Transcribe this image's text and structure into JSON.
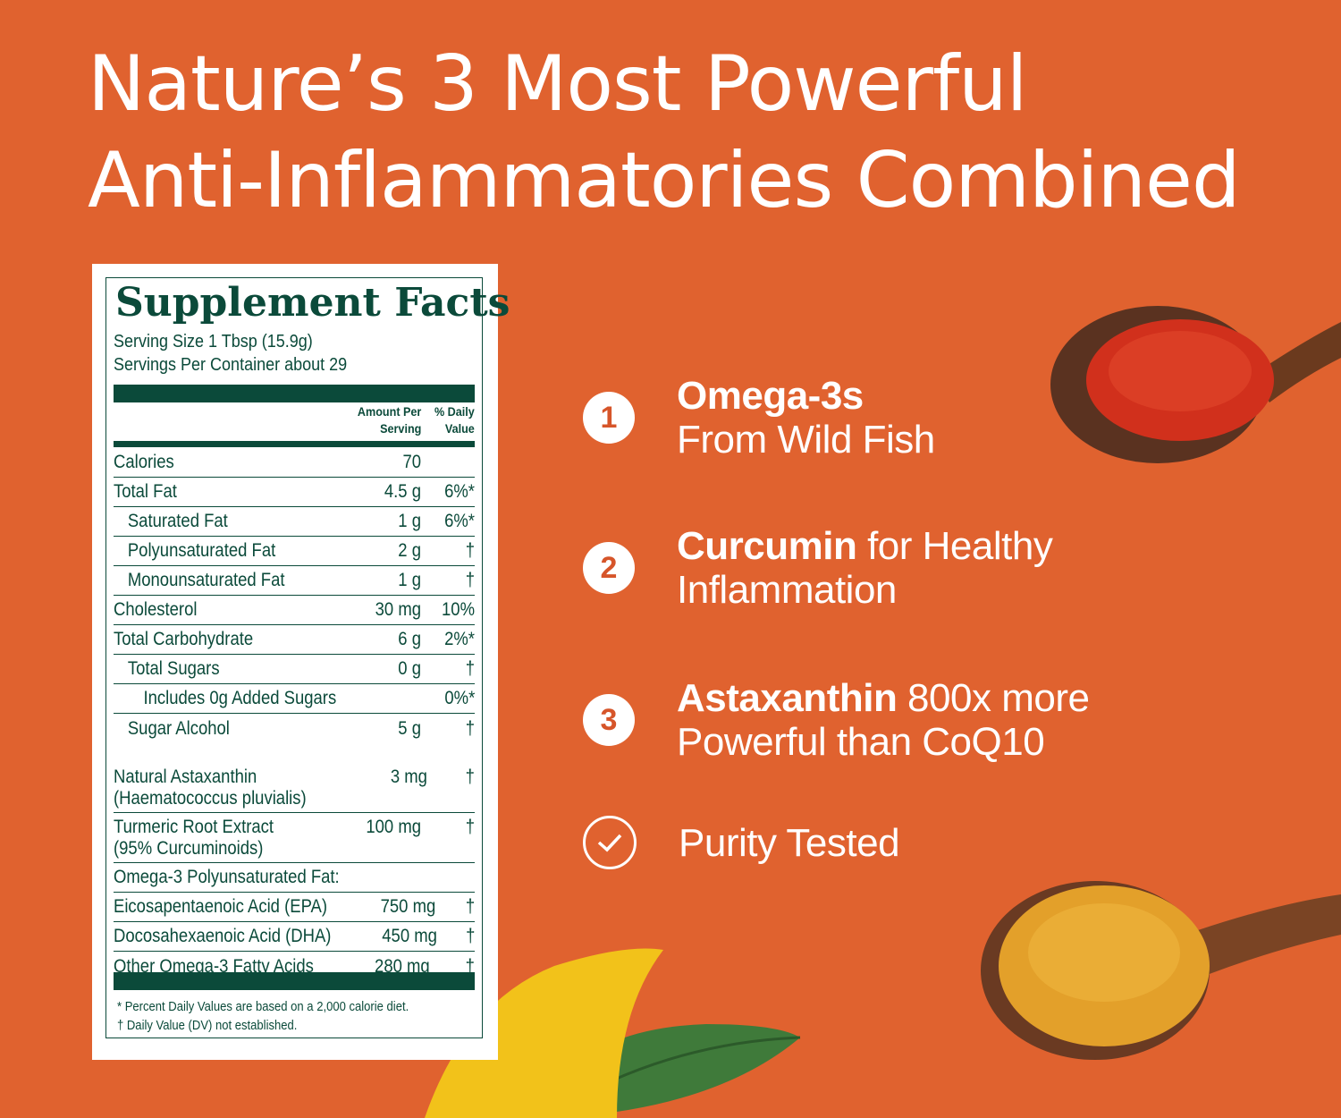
{
  "headline": {
    "line1": "Nature’s 3 Most Powerful",
    "line2": "Anti-Inflammatories Combined"
  },
  "facts": {
    "title": "Supplement Facts",
    "serving_size": "Serving Size 1 Tbsp (15.9g)",
    "servings_per_container": "Servings Per Container about 29",
    "col_amount": [
      "Amount Per",
      "Serving"
    ],
    "col_dv": [
      "% Daily",
      "Value"
    ],
    "rows": [
      {
        "label": "Calories",
        "amount": "70",
        "dv": ""
      },
      {
        "label": "Total Fat",
        "amount": "4.5 g",
        "dv": "6%*"
      },
      {
        "label": "Saturated Fat",
        "amount": "1 g",
        "dv": "6%*"
      },
      {
        "label": "Polyunsaturated Fat",
        "amount": "2 g",
        "dv": "†"
      },
      {
        "label": "Monounsaturated Fat",
        "amount": "1 g",
        "dv": "†"
      },
      {
        "label": "Cholesterol",
        "amount": "30 mg",
        "dv": "10%"
      },
      {
        "label": "Total Carbohydrate",
        "amount": "6 g",
        "dv": "2%*"
      },
      {
        "label": "Total Sugars",
        "amount": "0 g",
        "dv": "†"
      },
      {
        "label": "Includes 0g Added Sugars",
        "amount": "",
        "dv": "0%*"
      },
      {
        "label": "Sugar Alcohol",
        "amount": "5 g",
        "dv": "†"
      }
    ],
    "rows2": [
      {
        "label": "Natural Astaxanthin",
        "label2": "(Haematococcus pluvialis)",
        "amount": "3 mg",
        "dv": "†"
      },
      {
        "label": "Turmeric Root Extract",
        "label2": "(95% Curcuminoids)",
        "amount": "100 mg",
        "dv": "†"
      },
      {
        "label": "Omega-3 Polyunsaturated Fat:",
        "amount": "",
        "dv": ""
      },
      {
        "label": "Eicosapentaenoic Acid (EPA)",
        "amount": "750 mg",
        "dv": "†"
      },
      {
        "label": "Docosahexaenoic Acid (DHA)",
        "amount": "450 mg",
        "dv": "†"
      },
      {
        "label": "Other Omega-3 Fatty Acids",
        "amount": "280 mg",
        "dv": "†"
      }
    ],
    "footnote1": "* Percent Daily Values are based on a 2,000 calorie diet.",
    "footnote2": "† Daily Value (DV) not established."
  },
  "benefits": [
    {
      "number": "1",
      "bold": "Omega-3s",
      "rest": "",
      "line2": "From Wild Fish"
    },
    {
      "number": "2",
      "bold": "Curcumin",
      "rest": " for Healthy",
      "line2": "Inflammation"
    },
    {
      "number": "3",
      "bold": "Astaxanthin",
      "rest": " 800x more",
      "line2": "Powerful than CoQ10"
    },
    {
      "icon": "check-circle-icon",
      "text": "Purity Tested"
    }
  ],
  "colors": {
    "background": "#e0622f",
    "label_green": "#0b4a3a",
    "text": "#ffffff"
  }
}
